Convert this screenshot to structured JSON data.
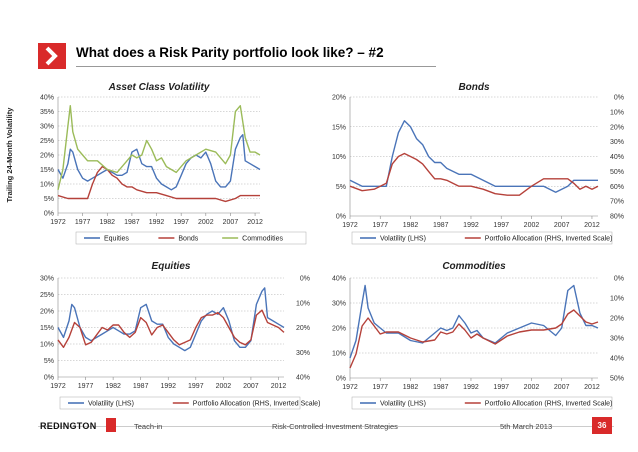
{
  "slide": {
    "title": "What does a Risk Parity portfolio look like? –  #2",
    "logo_icon": "red-chevron-icon"
  },
  "footer": {
    "brand": "REDINGTON",
    "teach_in": "Teach-in",
    "topic": "Risk-Controlled Investment Strategies",
    "date": "5th March 2013",
    "page": "36"
  },
  "colors": {
    "blue": "#4a74b8",
    "red": "#b5413a",
    "green": "#9bbb59",
    "accent": "#d92a2a"
  },
  "chart_data": [
    {
      "id": "asset-class-volatility",
      "type": "line",
      "title": "Asset Class Volatility",
      "title_italic": true,
      "ylabel": "Trailing 24-Month Volatility",
      "xlim": [
        1972,
        2013
      ],
      "ylim": [
        0,
        0.4
      ],
      "xticks": [
        "1972",
        "1977",
        "1982",
        "1987",
        "1992",
        "1997",
        "2002",
        "2007",
        "2012"
      ],
      "yticks": [
        "0%",
        "5%",
        "10%",
        "15%",
        "20%",
        "25%",
        "30%",
        "35%",
        "40%"
      ],
      "legend": [
        "Equities",
        "Bonds",
        "Commodities"
      ],
      "series": [
        {
          "name": "Equities",
          "axis": "left",
          "color": "#4a74b8",
          "x": [
            1972,
            1973,
            1974,
            1974.5,
            1975,
            1976,
            1977,
            1978,
            1979,
            1980,
            1981,
            1982,
            1983,
            1984,
            1985,
            1986,
            1987,
            1988,
            1989,
            1990,
            1991,
            1992,
            1993,
            1994,
            1995,
            1996,
            1997,
            1998,
            1999,
            2000,
            2001,
            2002,
            2003,
            2004,
            2005,
            2006,
            2007,
            2008,
            2009,
            2009.5,
            2010,
            2011,
            2012,
            2013
          ],
          "y": [
            0.15,
            0.12,
            0.17,
            0.22,
            0.21,
            0.15,
            0.12,
            0.11,
            0.12,
            0.13,
            0.14,
            0.15,
            0.14,
            0.13,
            0.13,
            0.14,
            0.21,
            0.22,
            0.17,
            0.16,
            0.16,
            0.12,
            0.1,
            0.09,
            0.08,
            0.09,
            0.13,
            0.17,
            0.19,
            0.2,
            0.19,
            0.21,
            0.17,
            0.11,
            0.09,
            0.09,
            0.11,
            0.22,
            0.26,
            0.27,
            0.18,
            0.17,
            0.16,
            0.15
          ]
        },
        {
          "name": "Bonds",
          "axis": "left",
          "color": "#b5413a",
          "x": [
            1972,
            1974,
            1976,
            1978,
            1979,
            1980,
            1981,
            1982,
            1983,
            1984,
            1985,
            1986,
            1987,
            1988,
            1990,
            1992,
            1994,
            1996,
            1998,
            2000,
            2002,
            2004,
            2006,
            2008,
            2009,
            2010,
            2011,
            2012,
            2013
          ],
          "y": [
            0.06,
            0.05,
            0.05,
            0.05,
            0.1,
            0.14,
            0.16,
            0.15,
            0.13,
            0.12,
            0.1,
            0.09,
            0.09,
            0.08,
            0.07,
            0.07,
            0.06,
            0.05,
            0.05,
            0.05,
            0.05,
            0.05,
            0.04,
            0.05,
            0.06,
            0.06,
            0.06,
            0.06,
            0.06
          ]
        },
        {
          "name": "Commodities",
          "axis": "left",
          "color": "#9bbb59",
          "x": [
            1972,
            1973,
            1974,
            1974.5,
            1975,
            1976,
            1977,
            1978,
            1980,
            1982,
            1984,
            1986,
            1987,
            1988,
            1989,
            1990,
            1991,
            1992,
            1993,
            1994,
            1996,
            1998,
            2000,
            2002,
            2004,
            2006,
            2007,
            2008,
            2009,
            2010,
            2011,
            2012,
            2013
          ],
          "y": [
            0.08,
            0.15,
            0.3,
            0.37,
            0.28,
            0.22,
            0.2,
            0.18,
            0.18,
            0.15,
            0.14,
            0.18,
            0.2,
            0.19,
            0.2,
            0.25,
            0.22,
            0.18,
            0.19,
            0.16,
            0.14,
            0.18,
            0.2,
            0.22,
            0.21,
            0.17,
            0.2,
            0.35,
            0.37,
            0.26,
            0.21,
            0.21,
            0.2
          ]
        }
      ]
    },
    {
      "id": "bonds",
      "type": "line",
      "title": "Bonds",
      "title_italic": true,
      "xlim": [
        1972,
        2013
      ],
      "ylim": [
        0,
        0.2
      ],
      "ylim_right": [
        0,
        0.8
      ],
      "right_inverted": true,
      "xticks": [
        "1972",
        "1977",
        "1982",
        "1987",
        "1992",
        "1997",
        "2002",
        "2007",
        "2012"
      ],
      "yticks": [
        "0%",
        "5%",
        "10%",
        "15%",
        "20%"
      ],
      "yticks_right": [
        "0%",
        "10%",
        "20%",
        "30%",
        "40%",
        "50%",
        "60%",
        "70%",
        "80%"
      ],
      "legend": [
        "Volatility (LHS)",
        "Portfolio Allocation (RHS, Inverted Scale)"
      ],
      "series": [
        {
          "name": "Volatility (LHS)",
          "axis": "left",
          "color": "#4a74b8",
          "x": [
            1972,
            1974,
            1976,
            1978,
            1979,
            1980,
            1981,
            1982,
            1983,
            1984,
            1985,
            1986,
            1987,
            1988,
            1990,
            1992,
            1994,
            1996,
            1998,
            2000,
            2002,
            2004,
            2006,
            2008,
            2009,
            2010,
            2011,
            2012,
            2013
          ],
          "y": [
            0.06,
            0.05,
            0.05,
            0.05,
            0.1,
            0.14,
            0.16,
            0.15,
            0.13,
            0.12,
            0.1,
            0.09,
            0.09,
            0.08,
            0.07,
            0.07,
            0.06,
            0.05,
            0.05,
            0.05,
            0.05,
            0.05,
            0.04,
            0.05,
            0.06,
            0.06,
            0.06,
            0.06,
            0.06
          ]
        },
        {
          "name": "Portfolio Allocation (RHS, Inverted Scale)",
          "axis": "right",
          "color": "#b5413a",
          "x": [
            1972,
            1974,
            1976,
            1978,
            1979,
            1980,
            1981,
            1982,
            1983,
            1984,
            1985,
            1986,
            1987,
            1988,
            1990,
            1992,
            1994,
            1996,
            1998,
            2000,
            2002,
            2004,
            2006,
            2008,
            2009,
            2010,
            2011,
            2012,
            2013
          ],
          "y": [
            0.6,
            0.63,
            0.62,
            0.58,
            0.45,
            0.4,
            0.38,
            0.4,
            0.42,
            0.45,
            0.5,
            0.55,
            0.55,
            0.56,
            0.6,
            0.6,
            0.62,
            0.65,
            0.66,
            0.66,
            0.6,
            0.55,
            0.55,
            0.55,
            0.58,
            0.62,
            0.6,
            0.62,
            0.6
          ]
        }
      ]
    },
    {
      "id": "equities",
      "type": "line",
      "title": "Equities",
      "title_italic": true,
      "xlim": [
        1972,
        2013
      ],
      "ylim": [
        0,
        0.3
      ],
      "ylim_right": [
        0,
        0.4
      ],
      "right_inverted": true,
      "xticks": [
        "1972",
        "1977",
        "1982",
        "1987",
        "1992",
        "1997",
        "2002",
        "2007",
        "2012"
      ],
      "yticks": [
        "0%",
        "5%",
        "10%",
        "15%",
        "20%",
        "25%",
        "30%"
      ],
      "yticks_right": [
        "0%",
        "10%",
        "20%",
        "30%",
        "40%"
      ],
      "legend": [
        "Volatility (LHS)",
        "Portfolio Allocation (RHS, Inverted Scale)"
      ],
      "series": [
        {
          "name": "Volatility (LHS)",
          "axis": "left",
          "color": "#4a74b8",
          "x": [
            1972,
            1973,
            1974,
            1974.5,
            1975,
            1976,
            1977,
            1978,
            1979,
            1980,
            1981,
            1982,
            1983,
            1984,
            1985,
            1986,
            1987,
            1988,
            1989,
            1990,
            1991,
            1992,
            1993,
            1994,
            1995,
            1996,
            1997,
            1998,
            1999,
            2000,
            2001,
            2002,
            2003,
            2004,
            2005,
            2006,
            2007,
            2008,
            2009,
            2009.5,
            2010,
            2011,
            2012,
            2013
          ],
          "y": [
            0.15,
            0.12,
            0.17,
            0.22,
            0.21,
            0.15,
            0.12,
            0.11,
            0.12,
            0.13,
            0.14,
            0.15,
            0.14,
            0.13,
            0.13,
            0.14,
            0.21,
            0.22,
            0.17,
            0.16,
            0.16,
            0.12,
            0.1,
            0.09,
            0.08,
            0.09,
            0.13,
            0.17,
            0.19,
            0.2,
            0.19,
            0.21,
            0.17,
            0.11,
            0.09,
            0.09,
            0.11,
            0.22,
            0.26,
            0.27,
            0.18,
            0.17,
            0.16,
            0.15
          ]
        },
        {
          "name": "Portfolio Allocation (RHS, Inverted Scale)",
          "axis": "right",
          "color": "#b5413a",
          "x": [
            1972,
            1973,
            1974,
            1975,
            1976,
            1977,
            1978,
            1979,
            1980,
            1981,
            1982,
            1983,
            1984,
            1985,
            1986,
            1987,
            1988,
            1989,
            1990,
            1991,
            1992,
            1993,
            1994,
            1995,
            1996,
            1997,
            1998,
            1999,
            2000,
            2001,
            2002,
            2003,
            2004,
            2005,
            2006,
            2007,
            2008,
            2009,
            2010,
            2011,
            2012,
            2013
          ],
          "y": [
            0.25,
            0.28,
            0.24,
            0.18,
            0.2,
            0.27,
            0.26,
            0.23,
            0.2,
            0.21,
            0.19,
            0.19,
            0.22,
            0.24,
            0.22,
            0.16,
            0.18,
            0.23,
            0.2,
            0.19,
            0.22,
            0.25,
            0.27,
            0.26,
            0.25,
            0.2,
            0.16,
            0.15,
            0.15,
            0.14,
            0.16,
            0.2,
            0.24,
            0.26,
            0.27,
            0.25,
            0.15,
            0.13,
            0.18,
            0.19,
            0.2,
            0.22
          ]
        }
      ]
    },
    {
      "id": "commodities",
      "type": "line",
      "title": "Commodities",
      "title_italic": true,
      "xlim": [
        1972,
        2013
      ],
      "ylim": [
        0,
        0.4
      ],
      "ylim_right": [
        0,
        0.5
      ],
      "right_inverted": true,
      "xticks": [
        "1972",
        "1977",
        "1982",
        "1987",
        "1992",
        "1997",
        "2002",
        "2007",
        "2012"
      ],
      "yticks": [
        "0%",
        "10%",
        "20%",
        "30%",
        "40%"
      ],
      "yticks_right": [
        "0%",
        "10%",
        "20%",
        "30%",
        "40%",
        "50%"
      ],
      "legend": [
        "Volatility (LHS)",
        "Portfolio Allocation (RHS, Inverted Scale)"
      ],
      "series": [
        {
          "name": "Volatility (LHS)",
          "axis": "left",
          "color": "#4a74b8",
          "x": [
            1972,
            1973,
            1974,
            1974.5,
            1975,
            1976,
            1977,
            1978,
            1980,
            1982,
            1984,
            1986,
            1987,
            1988,
            1989,
            1990,
            1991,
            1992,
            1993,
            1994,
            1996,
            1998,
            2000,
            2002,
            2004,
            2006,
            2007,
            2008,
            2009,
            2010,
            2011,
            2012,
            2013
          ],
          "y": [
            0.08,
            0.15,
            0.3,
            0.37,
            0.28,
            0.22,
            0.2,
            0.18,
            0.18,
            0.15,
            0.14,
            0.18,
            0.2,
            0.19,
            0.2,
            0.25,
            0.22,
            0.18,
            0.19,
            0.16,
            0.14,
            0.18,
            0.2,
            0.22,
            0.21,
            0.17,
            0.2,
            0.35,
            0.37,
            0.26,
            0.21,
            0.21,
            0.2
          ]
        },
        {
          "name": "Portfolio Allocation (RHS, Inverted Scale)",
          "axis": "right",
          "color": "#b5413a",
          "x": [
            1972,
            1973,
            1974,
            1975,
            1976,
            1977,
            1978,
            1980,
            1982,
            1984,
            1986,
            1987,
            1988,
            1989,
            1990,
            1991,
            1992,
            1993,
            1994,
            1996,
            1998,
            2000,
            2002,
            2004,
            2006,
            2007,
            2008,
            2009,
            2010,
            2011,
            2012,
            2013
          ],
          "y": [
            0.45,
            0.38,
            0.24,
            0.2,
            0.24,
            0.28,
            0.27,
            0.27,
            0.3,
            0.32,
            0.31,
            0.27,
            0.28,
            0.27,
            0.23,
            0.26,
            0.3,
            0.28,
            0.3,
            0.33,
            0.29,
            0.27,
            0.26,
            0.26,
            0.25,
            0.23,
            0.18,
            0.16,
            0.19,
            0.22,
            0.23,
            0.22
          ]
        }
      ]
    }
  ]
}
